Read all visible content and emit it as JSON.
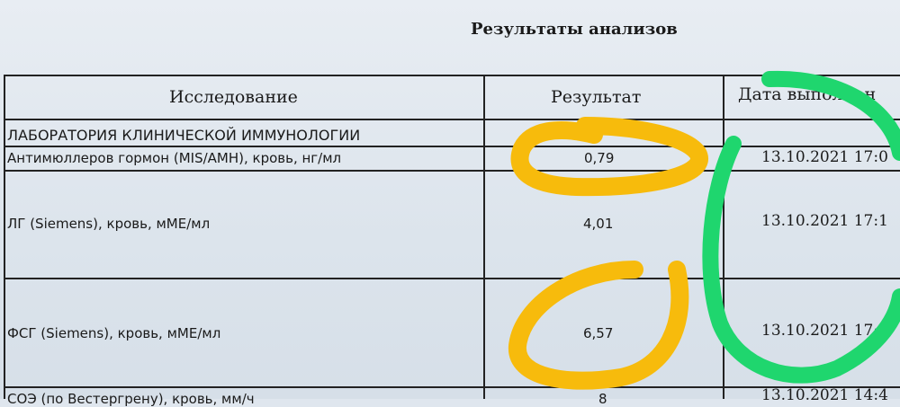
{
  "title": "Результаты анализов",
  "table": {
    "headers": [
      "Исследование",
      "Результат",
      "Дата выполнен"
    ],
    "section": "ЛАБОРАТОРИЯ КЛИНИЧЕСКОЙ ИММУНОЛОГИИ",
    "rows": [
      {
        "test": "Антимюллеров гормон (MIS/AMH), кровь, нг/мл",
        "result": "0,79",
        "date": "13.10.2021 17:0"
      },
      {
        "test": "ЛГ (Siemens), кровь, мМЕ/мл",
        "result": "4,01",
        "date": "13.10.2021 17:1"
      },
      {
        "test": "ФСГ (Siemens), кровь, мМЕ/мл",
        "result": "6,57",
        "date": "13.10.2021 17:"
      },
      {
        "test": "СОЭ (по Вестергрену), кровь, мм/ч",
        "result": "8",
        "date": "13.10.2021 14:4"
      }
    ]
  },
  "annotations": {
    "result_marker_color": "#f7bb0c",
    "date_marker_color": "#1fd66e"
  }
}
